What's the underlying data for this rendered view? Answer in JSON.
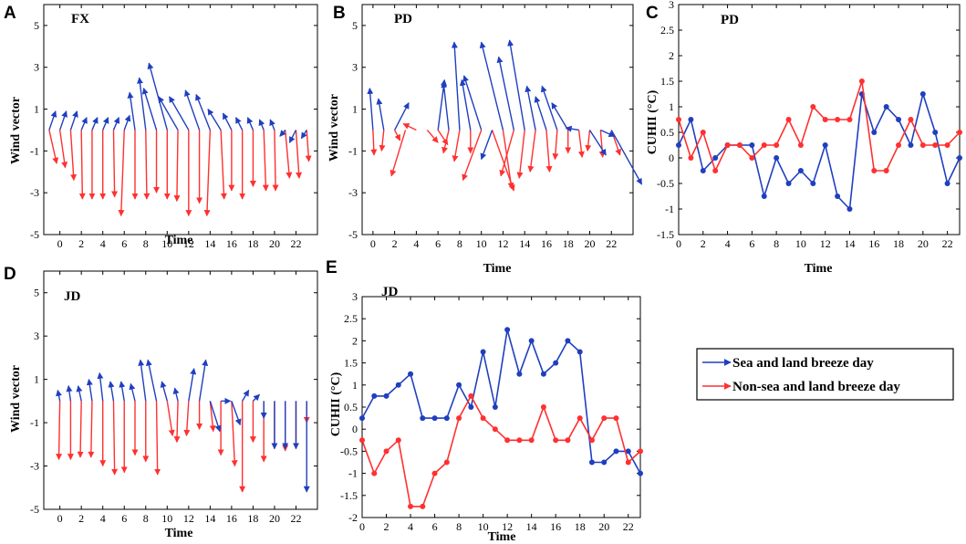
{
  "colors": {
    "blue": "#1f3fbf",
    "red": "#ff3030"
  },
  "legend": {
    "entries": [
      {
        "label": "Sea and land breeze day",
        "color": "#1f3fbf"
      },
      {
        "label": "Non-sea and land breeze day",
        "color": "#ff3030"
      }
    ]
  },
  "chart_data": [
    {
      "panel": "A",
      "type": "quiver",
      "site": "FX",
      "xlabel": "Time",
      "ylabel": "Wind vector",
      "xlim": [
        -1.5,
        24
      ],
      "ylim": [
        -5,
        6
      ],
      "xticks": [
        0,
        2,
        4,
        6,
        8,
        10,
        12,
        14,
        16,
        18,
        20,
        22
      ],
      "yticks": [
        -5,
        -3,
        -1,
        1,
        3,
        5
      ],
      "series": [
        {
          "name": "Sea and land breeze day",
          "color": "#1f3fbf",
          "x": [
            -1,
            0,
            1,
            2,
            3,
            4,
            5,
            6,
            7,
            8,
            9,
            10,
            11,
            12,
            13,
            14,
            15,
            16,
            17,
            18,
            19,
            20,
            21,
            22,
            23
          ],
          "u": [
            0.6,
            0.6,
            0.6,
            0.5,
            0.5,
            0.5,
            0.5,
            0.5,
            -0.5,
            -0.6,
            -1.2,
            -1.7,
            -1.8,
            -1.8,
            -1.3,
            -1.3,
            -1.2,
            -0.8,
            -0.6,
            -0.5,
            -0.4,
            -0.4,
            -0.5,
            -0.6,
            -0.5
          ],
          "v": [
            0.9,
            0.9,
            0.9,
            0.6,
            0.6,
            0.6,
            0.6,
            0.7,
            1.8,
            2.5,
            2.0,
            3.2,
            1.6,
            1.6,
            1.9,
            1.7,
            1.0,
            0.8,
            0.6,
            0.6,
            0.5,
            0.5,
            -0.3,
            -0.6,
            -0.4
          ]
        },
        {
          "name": "Non-sea and land breeze day",
          "color": "#ff3030",
          "x": [
            -1,
            0,
            1,
            2,
            3,
            4,
            5,
            6,
            7,
            8,
            9,
            10,
            11,
            12,
            13,
            14,
            15,
            16,
            17,
            18,
            19,
            20,
            21,
            22,
            23
          ],
          "u": [
            0.7,
            0.5,
            0.3,
            0.1,
            0,
            0,
            0.1,
            -0.3,
            0,
            0.1,
            0,
            0,
            -0.1,
            0,
            0,
            -0.3,
            0.3,
            0,
            0,
            0,
            0.2,
            0.1,
            0.4,
            0.3,
            0.2
          ],
          "v": [
            -1.6,
            -1.8,
            -2.4,
            -3.3,
            -3.3,
            -3.3,
            -3.2,
            -4.1,
            -3.3,
            -3.3,
            -3.0,
            -3.3,
            -3.4,
            -4.1,
            -3.5,
            -4.1,
            -3.3,
            -2.9,
            -3.3,
            -2.7,
            -2.9,
            -2.9,
            -2.3,
            -2.3,
            -1.5
          ]
        }
      ]
    },
    {
      "panel": "B",
      "type": "quiver",
      "site": "PD",
      "xlabel": "Time",
      "ylabel": "Wind vector",
      "xlim": [
        -1,
        24
      ],
      "ylim": [
        -5,
        6
      ],
      "xticks": [
        0,
        2,
        4,
        6,
        8,
        10,
        12,
        14,
        16,
        18,
        20,
        22
      ],
      "yticks": [
        -5,
        -3,
        -1,
        1,
        3,
        5
      ],
      "series": [
        {
          "name": "Sea and land breeze day",
          "color": "#1f3fbf",
          "x": [
            0,
            1,
            2,
            6,
            7,
            8,
            9,
            10,
            11,
            12,
            13,
            14,
            15,
            16,
            17,
            18,
            19,
            20,
            21,
            22
          ],
          "u": [
            -0.3,
            -0.5,
            1.3,
            0.6,
            -0.5,
            -0.5,
            -0.8,
            -1.6,
            -1.0,
            -2.0,
            -1.4,
            -1.4,
            -0.8,
            -1.0,
            -1.4,
            -1.5,
            -1.2,
            1.5,
            1.3,
            2.8
          ],
          "v": [
            2.0,
            1.5,
            1.3,
            2.4,
            2.3,
            4.2,
            2.4,
            2.6,
            -1.4,
            4.2,
            3.5,
            4.3,
            2.1,
            1.6,
            2.1,
            1.3,
            0.1,
            -1.2,
            -0.3,
            -2.6
          ]
        },
        {
          "name": "Non-sea and land breeze day",
          "color": "#ff3030",
          "x": [
            0,
            1,
            2,
            3,
            4,
            5,
            6,
            7,
            8,
            9,
            10,
            11,
            12,
            13,
            14,
            15,
            16,
            17,
            18,
            19,
            20,
            21,
            22
          ],
          "u": [
            0.1,
            -0.2,
            0.5,
            -1.3,
            -1.2,
            1.0,
            0.9,
            -0.5,
            -0.5,
            0,
            -1.7,
            2.0,
            0.8,
            -1.2,
            -0.5,
            -0.5,
            0.3,
            -0.2,
            0,
            0.3,
            -0.2,
            0.2,
            0.8
          ],
          "v": [
            -1.2,
            -1.0,
            -0.5,
            -2.2,
            0.3,
            -0.6,
            -0.7,
            -1.1,
            -1.5,
            -1.1,
            -2.4,
            -2.9,
            -2.8,
            -2.2,
            -2.3,
            -2.0,
            -2.0,
            -1.4,
            -1.1,
            -1.3,
            -1.0,
            -1.3,
            -1.2
          ]
        }
      ]
    },
    {
      "panel": "C",
      "type": "line",
      "site": "PD",
      "xlabel": "Time",
      "ylabel": "CUHII (°C)",
      "xlim": [
        0,
        23
      ],
      "ylim": [
        -1.5,
        3
      ],
      "xticks": [
        0,
        2,
        4,
        6,
        8,
        10,
        12,
        14,
        16,
        18,
        20,
        22
      ],
      "yticks": [
        -1.5,
        -1,
        -0.5,
        0,
        0.5,
        1,
        1.5,
        2,
        2.5,
        3
      ],
      "x": [
        0,
        1,
        2,
        3,
        4,
        5,
        6,
        7,
        8,
        9,
        10,
        11,
        12,
        13,
        14,
        15,
        16,
        17,
        18,
        19,
        20,
        21,
        22,
        23
      ],
      "series": [
        {
          "name": "Sea and land breeze day",
          "color": "#1f3fbf",
          "values": [
            0.25,
            0.75,
            -0.25,
            0,
            0.25,
            0.25,
            0.25,
            -0.75,
            0,
            -0.5,
            -0.25,
            -0.5,
            0.25,
            -0.75,
            -1.0,
            1.25,
            0.5,
            1.0,
            0.75,
            0.25,
            1.25,
            0.5,
            -0.5,
            0
          ]
        },
        {
          "name": "Non-sea and land breeze day",
          "color": "#ff3030",
          "values": [
            0.75,
            0,
            0.5,
            -0.25,
            0.25,
            0.25,
            0,
            0.25,
            0.25,
            0.75,
            0.25,
            1.0,
            0.75,
            0.75,
            0.75,
            1.5,
            -0.25,
            -0.25,
            0.25,
            0.75,
            0.25,
            0.25,
            0.25,
            0.5
          ]
        }
      ]
    },
    {
      "panel": "D",
      "type": "quiver",
      "site": "JD",
      "xlabel": "Time",
      "ylabel": "Wind vector",
      "xlim": [
        -1.5,
        24
      ],
      "ylim": [
        -5,
        6
      ],
      "xticks": [
        0,
        2,
        4,
        6,
        8,
        10,
        12,
        14,
        16,
        18,
        20,
        22
      ],
      "yticks": [
        -5,
        -3,
        -1,
        1,
        3,
        5
      ],
      "series": [
        {
          "name": "Sea and land breeze day",
          "color": "#1f3fbf",
          "x": [
            0,
            1,
            2,
            3,
            4,
            5,
            6,
            7,
            8,
            9,
            10,
            11,
            12,
            13,
            14,
            15,
            16,
            17,
            18,
            19,
            20,
            21,
            22,
            23
          ],
          "u": [
            -0.2,
            -0.2,
            -0.3,
            -0.3,
            -0.3,
            -0.3,
            -0.3,
            -0.4,
            -0.5,
            -0.8,
            -0.5,
            -0.3,
            0.5,
            0.6,
            0.9,
            0.9,
            0.8,
            0.6,
            0.6,
            0,
            0,
            0,
            0,
            0
          ],
          "v": [
            0.5,
            0.7,
            0.7,
            1.0,
            1.3,
            0.9,
            0.9,
            0.8,
            1.9,
            1.9,
            0.9,
            0.6,
            1.5,
            1.9,
            -1.4,
            0,
            -1.1,
            0.5,
            0.3,
            -0.8,
            -2.2,
            -2.2,
            -2.2,
            -4.2
          ]
        },
        {
          "name": "Non-sea and land breeze day",
          "color": "#ff3030",
          "x": [
            0,
            1,
            2,
            3,
            4,
            5,
            6,
            7,
            8,
            9,
            10,
            11,
            12,
            13,
            14,
            15,
            16,
            17,
            18,
            19,
            20,
            21,
            22,
            23
          ],
          "u": [
            -0.1,
            0,
            -0.1,
            -0.1,
            0,
            0.1,
            0,
            0,
            0,
            0.1,
            0.5,
            -0.1,
            -0.2,
            0,
            0.3,
            0,
            0.3,
            0,
            0,
            0,
            0,
            0,
            0,
            0
          ],
          "v": [
            -2.7,
            -2.7,
            -2.6,
            -2.6,
            -3.0,
            -3.4,
            -3.3,
            -2.5,
            -2.8,
            -3.4,
            -1.6,
            -1.9,
            -1.6,
            -1.3,
            -1.4,
            -2.5,
            -3.0,
            -4.2,
            -1.9,
            -2.8,
            -2.2,
            -2.3,
            -2.2,
            -1.0
          ]
        }
      ]
    },
    {
      "panel": "E",
      "type": "line",
      "site": "JD",
      "xlabel": "Time",
      "ylabel": "CUHII (°C)",
      "xlim": [
        0,
        23
      ],
      "ylim": [
        -2,
        3
      ],
      "xticks": [
        0,
        2,
        4,
        6,
        8,
        10,
        12,
        14,
        16,
        18,
        20,
        22
      ],
      "yticks": [
        -2,
        -1.5,
        -1,
        -0.5,
        0,
        0.5,
        1,
        1.5,
        2,
        2.5,
        3
      ],
      "x": [
        0,
        1,
        2,
        3,
        4,
        5,
        6,
        7,
        8,
        9,
        10,
        11,
        12,
        13,
        14,
        15,
        16,
        17,
        18,
        19,
        20,
        21,
        22,
        23
      ],
      "series": [
        {
          "name": "Sea and land breeze day",
          "color": "#1f3fbf",
          "values": [
            0.25,
            0.75,
            0.75,
            1.0,
            1.25,
            0.25,
            0.25,
            0.25,
            1.0,
            0.5,
            1.75,
            0.5,
            2.25,
            1.25,
            2.0,
            1.25,
            1.5,
            2.0,
            1.75,
            -0.75,
            -0.75,
            -0.5,
            -0.5,
            -1.0
          ]
        },
        {
          "name": "Non-sea and land breeze day",
          "color": "#ff3030",
          "values": [
            -0.25,
            -1.0,
            -0.5,
            -0.25,
            -1.75,
            -1.75,
            -1.0,
            -0.75,
            0.25,
            0.75,
            0.25,
            0,
            -0.25,
            -0.25,
            -0.25,
            0.5,
            -0.25,
            -0.25,
            0.25,
            -0.25,
            0.25,
            0.25,
            -0.75,
            -0.5
          ]
        }
      ]
    }
  ]
}
